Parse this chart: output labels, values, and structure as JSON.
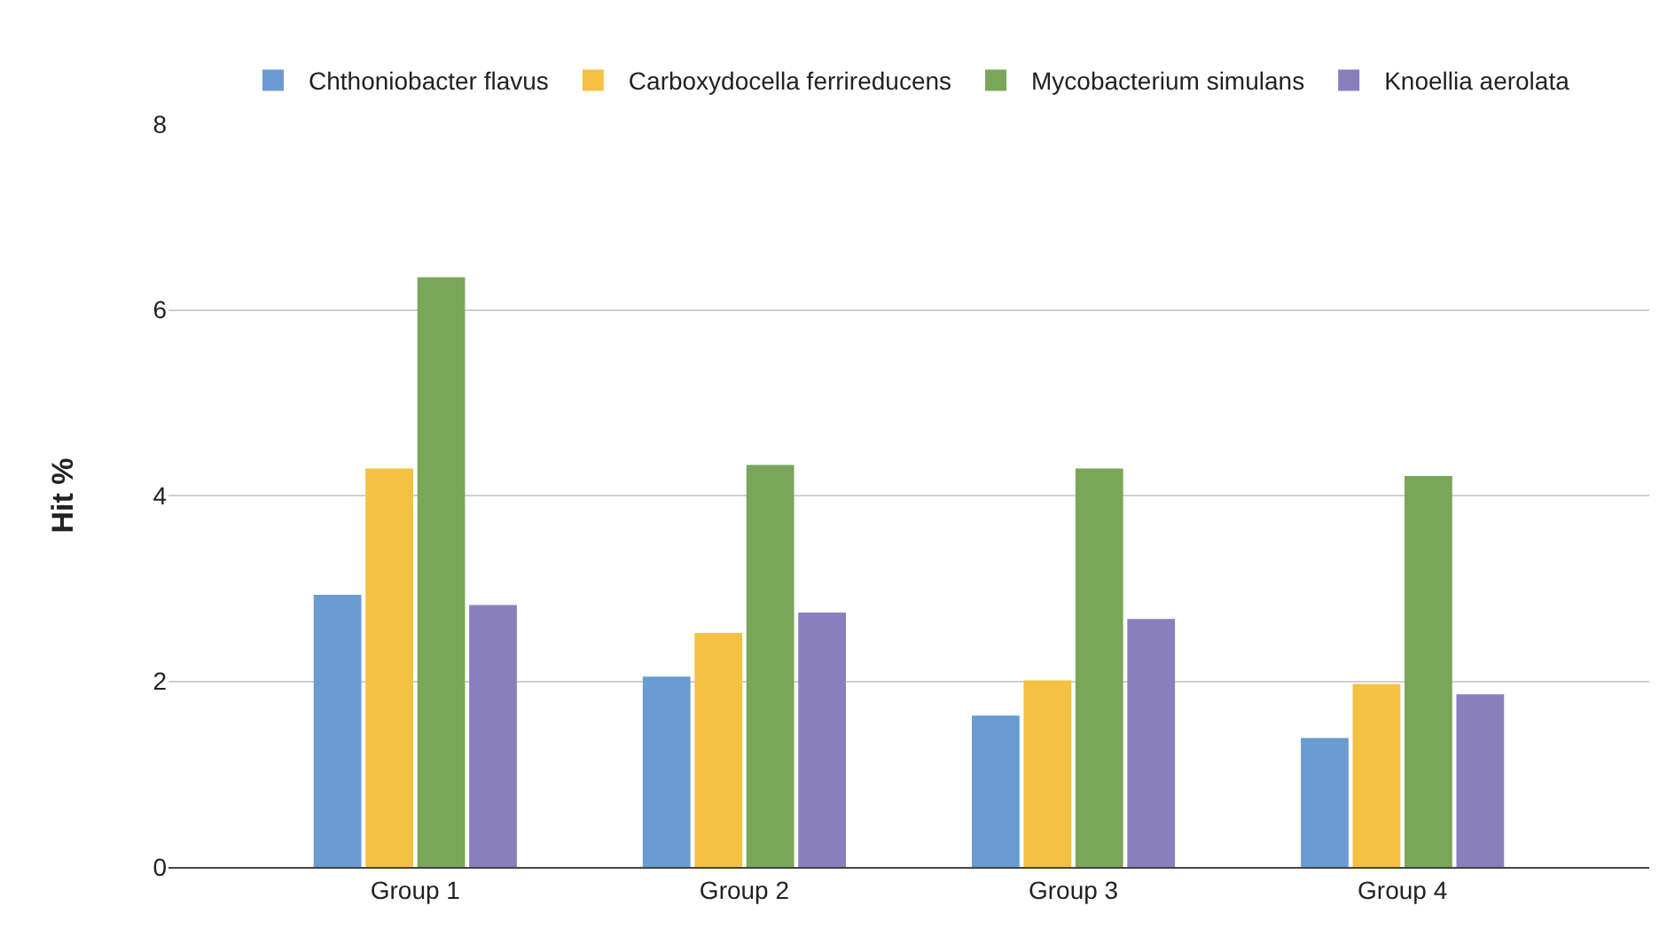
{
  "chart_data": {
    "type": "bar",
    "ylabel": "Hit %",
    "categories": [
      "Group 1",
      "Group 2",
      "Group 3",
      "Group 4"
    ],
    "series": [
      {
        "name": "Chthoniobacter flavus",
        "color": "#6a9bd1",
        "values": [
          2.93,
          2.05,
          1.63,
          1.39
        ]
      },
      {
        "name": "Carboxydocella ferrireducens",
        "color": "#f4c142",
        "values": [
          4.29,
          2.52,
          2.01,
          1.97
        ]
      },
      {
        "name": "Mycobacterium simulans",
        "color": "#79a659",
        "values": [
          6.35,
          4.33,
          4.29,
          4.21
        ]
      },
      {
        "name": "Knoellia aerolata",
        "color": "#8a7fbe",
        "values": [
          2.82,
          2.74,
          2.67,
          1.86
        ]
      }
    ],
    "ylim": [
      0,
      8
    ],
    "yticks": [
      0,
      2,
      4,
      6,
      8
    ],
    "grid": "y",
    "legend": "top"
  }
}
